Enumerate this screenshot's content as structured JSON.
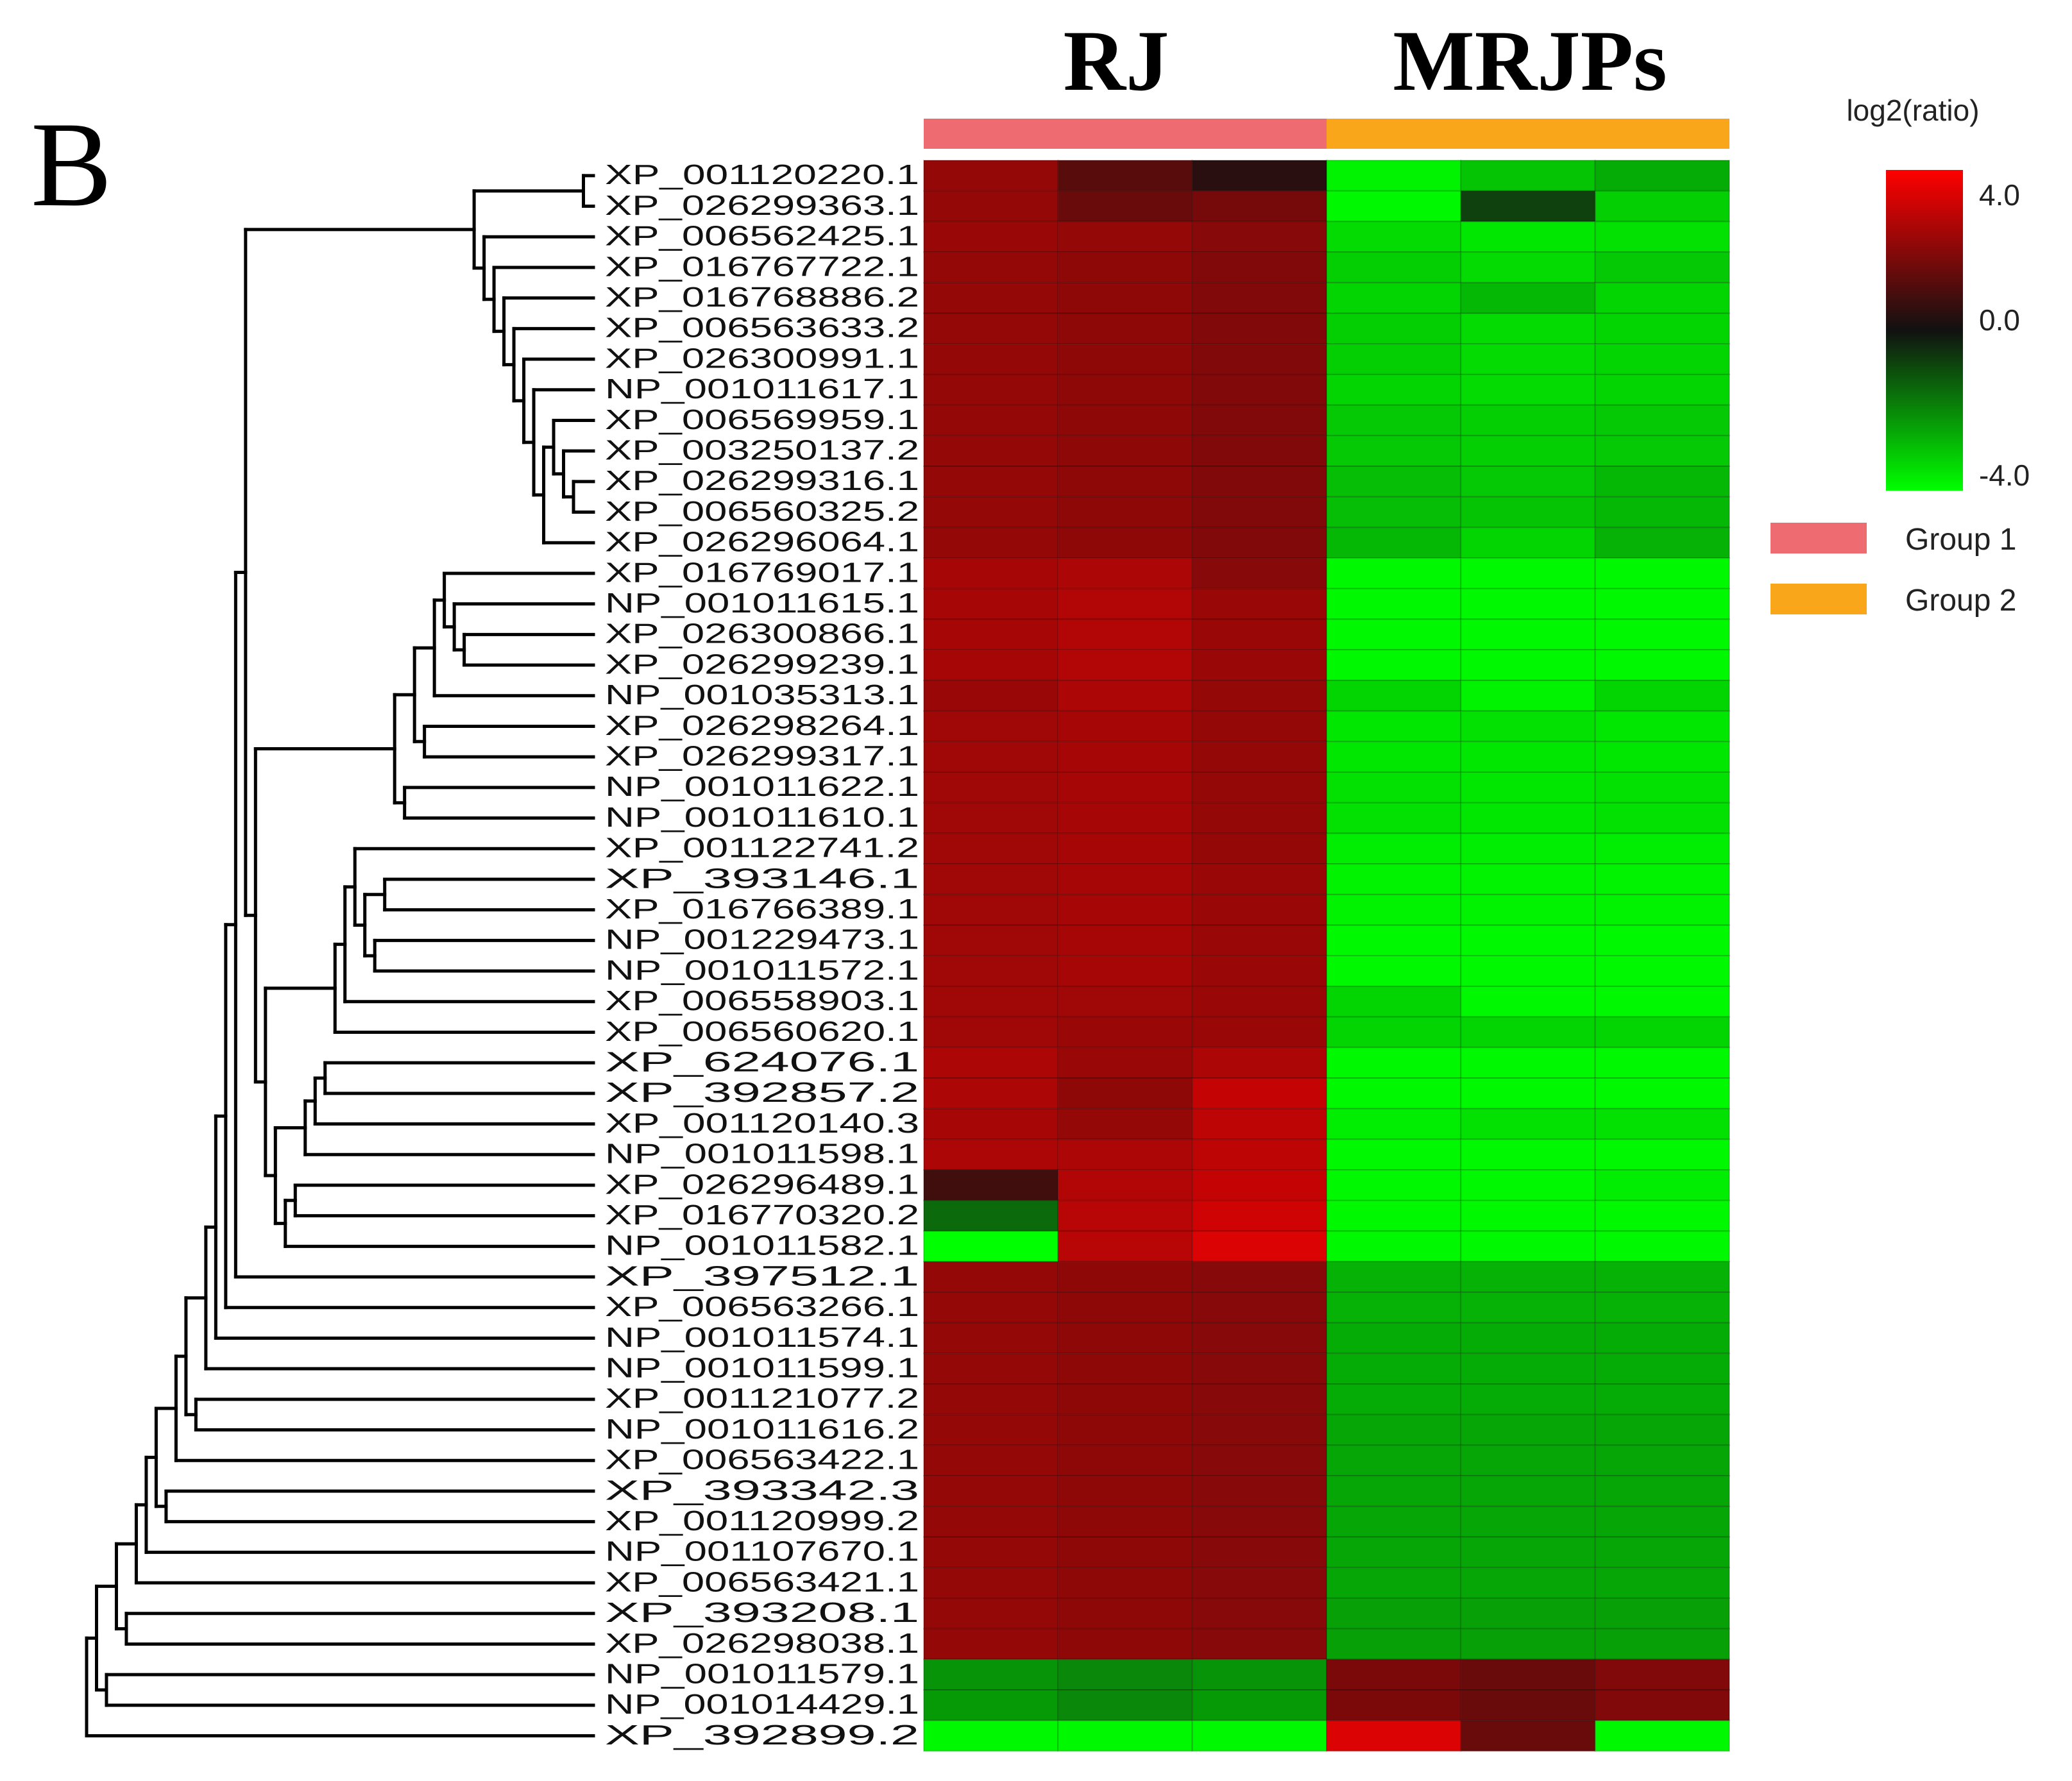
{
  "panel_label": "B",
  "colors": {
    "group1": "#EE6B72",
    "group2": "#F9A61A",
    "scale_high": "#FF0000",
    "scale_mid": "#111111",
    "scale_low": "#00FF00"
  },
  "chart_data": {
    "type": "heatmap",
    "title": "",
    "column_groups": [
      {
        "name": "RJ",
        "legend_label": "Group 1",
        "color_key": "group1",
        "columns": 3
      },
      {
        "name": "MRJPs",
        "legend_label": "Group 2",
        "color_key": "group2",
        "columns": 3
      }
    ],
    "color_scale": {
      "title": "log2(ratio)",
      "min": -4.0,
      "max": 4.0,
      "tick_labels": [
        "4.0",
        "0.0",
        "-4.0"
      ],
      "tick_values": [
        4.0,
        0.0,
        -4.0
      ]
    },
    "rows": [
      "XP_001120220.1",
      "XP_026299363.1",
      "XP_006562425.1",
      "XP_016767722.1",
      "XP_016768886.2",
      "XP_006563633.2",
      "XP_026300991.1",
      "NP_001011617.1",
      "XP_006569959.1",
      "XP_003250137.2",
      "XP_026299316.1",
      "XP_006560325.2",
      "XP_026296064.1",
      "XP_016769017.1",
      "NP_001011615.1",
      "XP_026300866.1",
      "XP_026299239.1",
      "NP_001035313.1",
      "XP_026298264.1",
      "XP_026299317.1",
      "NP_001011622.1",
      "NP_001011610.1",
      "XP_001122741.2",
      "XP_393146.1",
      "XP_016766389.1",
      "NP_001229473.1",
      "NP_001011572.1",
      "XP_006558903.1",
      "XP_006560620.1",
      "XP_624076.1",
      "XP_392857.2",
      "XP_001120140.3",
      "NP_001011598.1",
      "XP_026296489.1",
      "XP_016770320.2",
      "NP_001011582.1",
      "XP_397512.1",
      "XP_006563266.1",
      "NP_001011574.1",
      "NP_001011599.1",
      "XP_001121077.2",
      "NP_001011616.2",
      "XP_006563422.1",
      "XP_393342.3",
      "XP_001120999.2",
      "NP_001107670.1",
      "XP_006563421.1",
      "XP_393208.1",
      "XP_026298038.1",
      "NP_001011579.1",
      "NP_001014429.1",
      "XP_392899.2"
    ],
    "values": [
      [
        2.2,
        1.2,
        0.4,
        -3.8,
        -3.0,
        -2.6
      ],
      [
        2.2,
        1.5,
        1.7,
        -3.9,
        -0.8,
        -3.2
      ],
      [
        2.3,
        2.2,
        2.0,
        -3.4,
        -3.6,
        -3.5
      ],
      [
        2.2,
        2.1,
        1.9,
        -3.2,
        -3.4,
        -3.1
      ],
      [
        2.2,
        2.1,
        1.9,
        -3.3,
        -2.8,
        -3.3
      ],
      [
        2.2,
        2.1,
        1.9,
        -3.2,
        -3.4,
        -3.3
      ],
      [
        2.2,
        2.1,
        1.9,
        -3.2,
        -3.4,
        -3.3
      ],
      [
        2.2,
        2.1,
        1.9,
        -3.3,
        -3.4,
        -3.3
      ],
      [
        2.2,
        2.1,
        1.9,
        -3.1,
        -3.2,
        -3.1
      ],
      [
        2.2,
        2.1,
        1.9,
        -3.1,
        -3.2,
        -3.1
      ],
      [
        2.2,
        2.1,
        1.9,
        -2.9,
        -3.1,
        -2.8
      ],
      [
        2.2,
        2.1,
        1.9,
        -2.9,
        -3.0,
        -2.8
      ],
      [
        2.2,
        2.1,
        1.9,
        -2.8,
        -3.3,
        -2.7
      ],
      [
        2.5,
        2.6,
        2.0,
        -3.9,
        -3.9,
        -3.9
      ],
      [
        2.5,
        2.7,
        2.3,
        -3.9,
        -3.9,
        -3.9
      ],
      [
        2.5,
        2.7,
        2.3,
        -3.9,
        -3.9,
        -3.9
      ],
      [
        2.5,
        2.7,
        2.3,
        -3.9,
        -3.9,
        -3.9
      ],
      [
        2.3,
        2.6,
        2.2,
        -3.3,
        -3.8,
        -3.3
      ],
      [
        2.4,
        2.5,
        2.2,
        -3.6,
        -3.5,
        -3.6
      ],
      [
        2.4,
        2.5,
        2.2,
        -3.6,
        -3.6,
        -3.6
      ],
      [
        2.4,
        2.5,
        2.2,
        -3.5,
        -3.6,
        -3.5
      ],
      [
        2.4,
        2.5,
        2.2,
        -3.5,
        -3.6,
        -3.5
      ],
      [
        2.4,
        2.5,
        2.2,
        -3.7,
        -3.7,
        -3.7
      ],
      [
        2.4,
        2.5,
        2.3,
        -3.8,
        -3.8,
        -3.8
      ],
      [
        2.4,
        2.5,
        2.3,
        -3.8,
        -3.8,
        -3.8
      ],
      [
        2.4,
        2.5,
        2.3,
        -3.9,
        -3.9,
        -3.9
      ],
      [
        2.4,
        2.5,
        2.3,
        -3.9,
        -3.9,
        -3.9
      ],
      [
        2.4,
        2.4,
        2.3,
        -3.3,
        -3.9,
        -3.9
      ],
      [
        2.4,
        2.3,
        2.3,
        -3.3,
        -3.3,
        -3.3
      ],
      [
        2.6,
        2.3,
        2.6,
        -3.9,
        -3.9,
        -3.9
      ],
      [
        2.6,
        2.1,
        3.0,
        -3.9,
        -3.9,
        -3.9
      ],
      [
        2.5,
        2.2,
        2.9,
        -3.7,
        -3.5,
        -3.5
      ],
      [
        2.6,
        2.6,
        2.9,
        -3.9,
        -3.9,
        -3.9
      ],
      [
        0.8,
        2.7,
        3.0,
        -3.9,
        -3.9,
        -3.7
      ],
      [
        -1.5,
        2.8,
        3.2,
        -3.9,
        -3.9,
        -3.9
      ],
      [
        -4.0,
        2.8,
        3.4,
        -3.9,
        -3.9,
        -3.9
      ],
      [
        2.2,
        2.1,
        2.0,
        -2.7,
        -2.7,
        -2.7
      ],
      [
        2.2,
        2.1,
        2.0,
        -2.7,
        -2.7,
        -2.7
      ],
      [
        2.2,
        2.1,
        2.0,
        -2.6,
        -2.6,
        -2.6
      ],
      [
        2.2,
        2.1,
        2.0,
        -2.6,
        -2.6,
        -2.6
      ],
      [
        2.2,
        2.1,
        2.0,
        -2.6,
        -2.6,
        -2.6
      ],
      [
        2.2,
        2.1,
        2.0,
        -2.5,
        -2.5,
        -2.5
      ],
      [
        2.2,
        2.1,
        2.0,
        -2.5,
        -2.5,
        -2.5
      ],
      [
        2.2,
        2.1,
        2.0,
        -2.5,
        -2.5,
        -2.5
      ],
      [
        2.2,
        2.1,
        2.0,
        -2.5,
        -2.5,
        -2.5
      ],
      [
        2.2,
        2.1,
        2.0,
        -2.5,
        -2.5,
        -2.5
      ],
      [
        2.2,
        2.1,
        2.0,
        -2.5,
        -2.5,
        -2.5
      ],
      [
        2.2,
        2.1,
        2.0,
        -2.4,
        -2.4,
        -2.4
      ],
      [
        2.2,
        2.1,
        2.0,
        -2.4,
        -2.4,
        -2.4
      ],
      [
        -2.2,
        -2.0,
        -2.2,
        1.8,
        1.5,
        1.9
      ],
      [
        -2.3,
        -2.0,
        -2.3,
        1.8,
        1.5,
        1.9
      ],
      [
        -3.9,
        -3.9,
        -3.9,
        3.4,
        1.5,
        -3.9
      ]
    ],
    "dendrogram_merges": [
      [
        -1,
        -2
      ],
      [
        -11,
        -12
      ],
      [
        -10,
        2
      ],
      [
        -9,
        3
      ],
      [
        -13,
        4
      ],
      [
        -8,
        5
      ],
      [
        -7,
        6
      ],
      [
        -6,
        7
      ],
      [
        -5,
        8
      ],
      [
        -4,
        9
      ],
      [
        -3,
        10
      ],
      [
        1,
        11
      ],
      [
        -16,
        -17
      ],
      [
        -15,
        13
      ],
      [
        -14,
        14
      ],
      [
        -18,
        15
      ],
      [
        -19,
        -20
      ],
      [
        16,
        17
      ],
      [
        -21,
        -22
      ],
      [
        18,
        19
      ],
      [
        -24,
        -25
      ],
      [
        -26,
        -27
      ],
      [
        21,
        22
      ],
      [
        -23,
        23
      ],
      [
        24,
        -28
      ],
      [
        25,
        -29
      ],
      [
        -30,
        -31
      ],
      [
        27,
        -32
      ],
      [
        28,
        -33
      ],
      [
        -34,
        -35
      ],
      [
        30,
        -36
      ],
      [
        29,
        31
      ],
      [
        26,
        32
      ],
      [
        20,
        33
      ],
      [
        12,
        34
      ],
      [
        35,
        -37
      ],
      [
        36,
        -38
      ],
      [
        37,
        -39
      ],
      [
        38,
        -40
      ],
      [
        -41,
        -42
      ],
      [
        39,
        40
      ],
      [
        41,
        -43
      ],
      [
        -44,
        -45
      ],
      [
        42,
        43
      ],
      [
        44,
        -46
      ],
      [
        45,
        -47
      ],
      [
        -48,
        -49
      ],
      [
        46,
        47
      ],
      [
        -50,
        -51
      ],
      [
        48,
        49
      ],
      [
        50,
        -52
      ]
    ]
  }
}
